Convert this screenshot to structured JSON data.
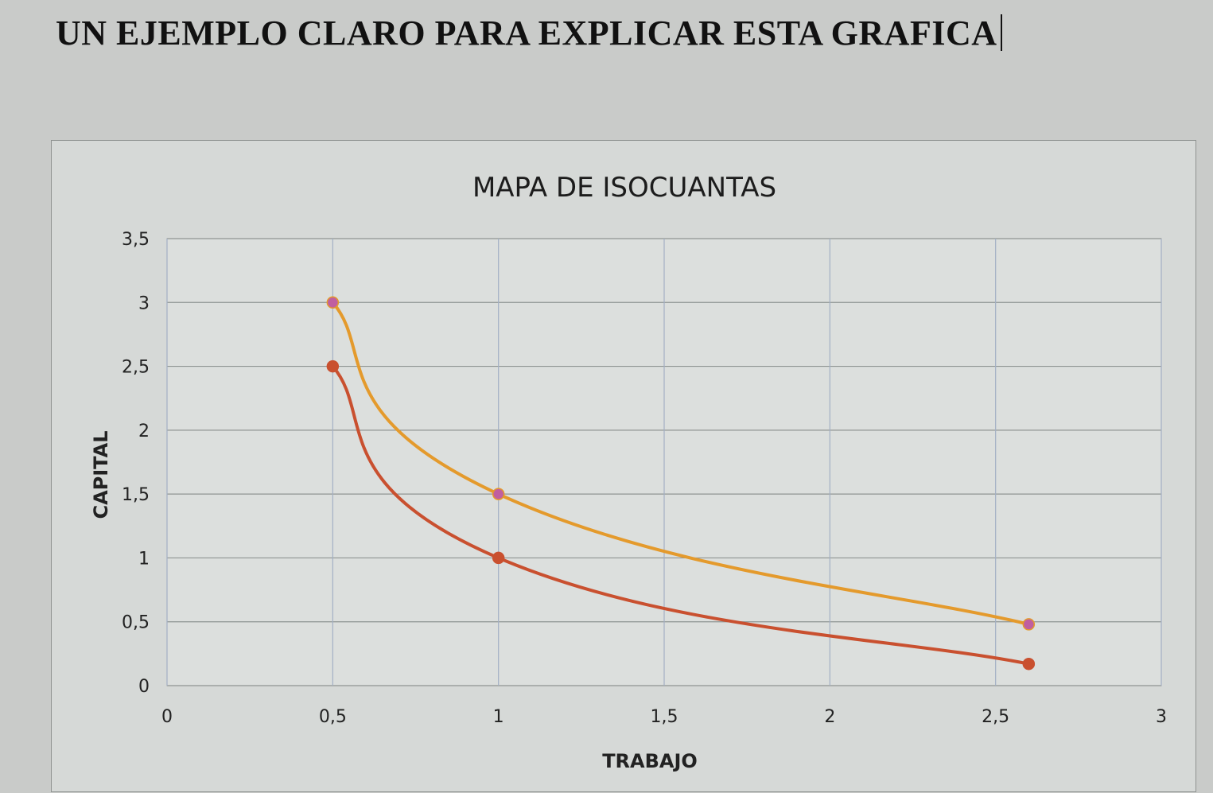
{
  "page": {
    "heading": "UN EJEMPLO CLARO PARA EXPLICAR ESTA GRAFICA"
  },
  "chart_data": {
    "type": "line",
    "title": "MAPA DE ISOCUANTAS",
    "xlabel": "TRABAJO",
    "ylabel": "CAPITAL",
    "xlim": [
      0,
      3
    ],
    "ylim": [
      0,
      3.5
    ],
    "x_ticks": [
      "0",
      "0,5",
      "1",
      "1,5",
      "2",
      "2,5",
      "3"
    ],
    "y_ticks": [
      "0",
      "0,5",
      "1",
      "1,5",
      "2",
      "2,5",
      "3",
      "3,5"
    ],
    "grid": true,
    "smooth": true,
    "series": [
      {
        "x": [
          0.5,
          1,
          2.6
        ],
        "values": [
          3,
          1.5,
          0.48
        ],
        "color": "#e49a2c",
        "marker_color": "#c05fa0"
      },
      {
        "x": [
          0.5,
          1,
          2.6
        ],
        "values": [
          2.5,
          1,
          0.17
        ],
        "color": "#c9502f",
        "marker_color": "#c9502f"
      }
    ]
  }
}
